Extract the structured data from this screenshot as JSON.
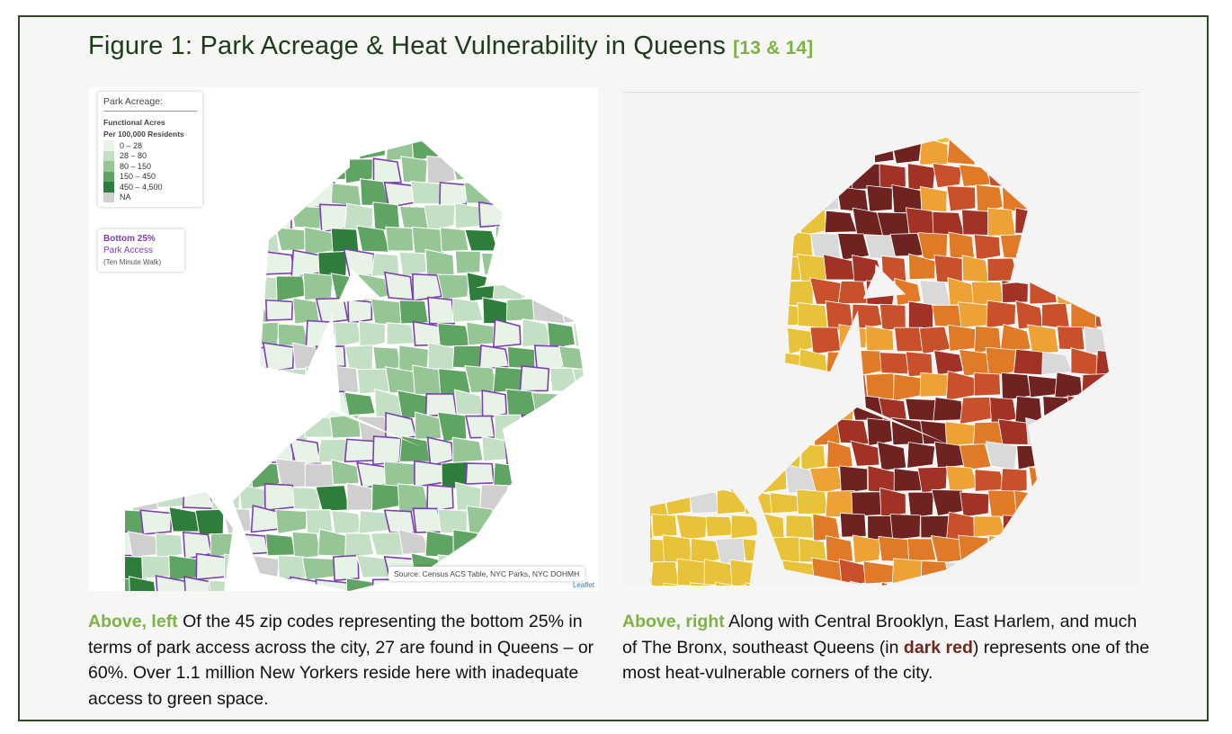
{
  "figure": {
    "title": "Figure 1: Park Acreage & Heat Vulnerability in Queens",
    "ref": "[13 & 14]"
  },
  "left_map": {
    "legend": {
      "title": "Park Acreage:",
      "subtitle_1": "Functional Acres",
      "subtitle_2": "Per 100,000 Residents",
      "items": [
        {
          "label": "0 – 28",
          "color": "#e8f3e8"
        },
        {
          "label": "28 – 80",
          "color": "#c4e0c4"
        },
        {
          "label": "80 – 150",
          "color": "#96c596"
        },
        {
          "label": "150 – 450",
          "color": "#5fa463"
        },
        {
          "label": "450 – 4,500",
          "color": "#2e7d3a"
        },
        {
          "label": "NA",
          "color": "#cfcfcf"
        }
      ]
    },
    "overlay_legend": {
      "line1": "Bottom 25%",
      "line2": "Park Access",
      "line3": "(Ten Minute Walk)",
      "color": "#7b3fb0"
    },
    "source": "Source: Census ACS Table, NYC Parks, NYC DOHMH",
    "attribution": "Leaflet"
  },
  "right_map": {
    "palette": [
      "#e8c33a",
      "#eea236",
      "#e07a26",
      "#c8502a",
      "#a23225",
      "#6e2320",
      "#d9d9d9"
    ]
  },
  "captions": {
    "left": {
      "lead": "Above, left",
      "text": " Of the 45 zip codes representing the bottom 25% in terms of park access across the city, 27 are found in Queens – or 60%. Over 1.1 million New Yorkers reside here with inadequate access to green space."
    },
    "right": {
      "lead": "Above, right",
      "text_1": " Along with Central Brooklyn, East Harlem, and much of The Bronx, southeast Queens (in ",
      "highlight": "dark red",
      "text_2": ") represents one of the most heat-vulnerable corners of the city."
    }
  }
}
